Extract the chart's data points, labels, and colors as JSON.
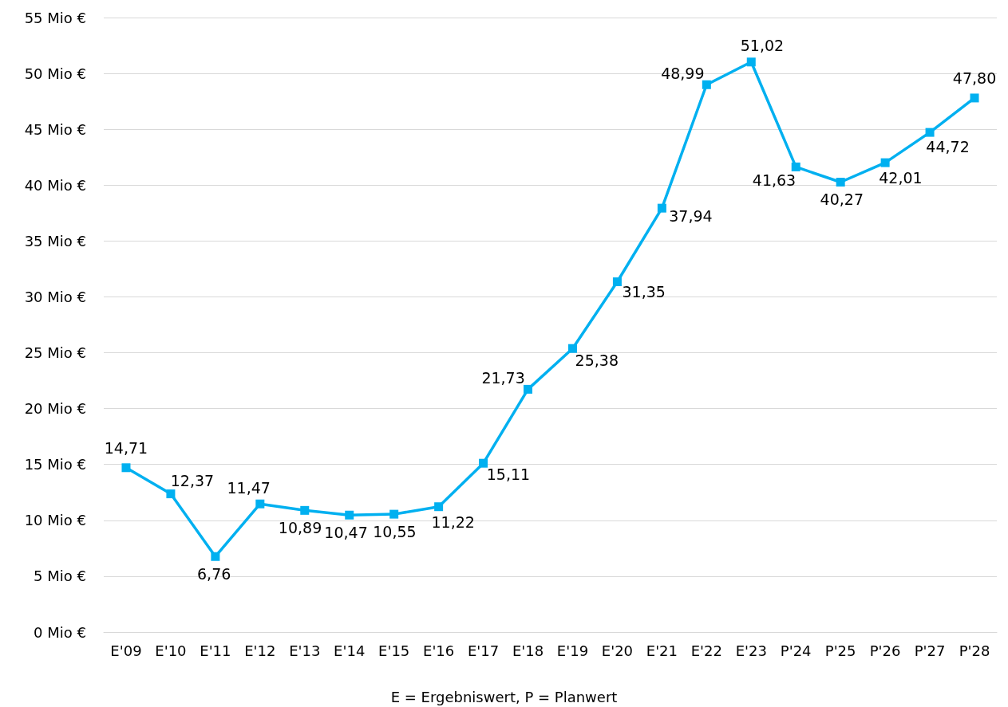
{
  "chart_data": {
    "type": "line",
    "categories": [
      "E'09",
      "E'10",
      "E'11",
      "E'12",
      "E'13",
      "E'14",
      "E'15",
      "E'16",
      "E'17",
      "E'18",
      "E'19",
      "E'20",
      "E'21",
      "E'22",
      "E'23",
      "P'24",
      "P'25",
      "P'26",
      "P'27",
      "P'28"
    ],
    "series": [
      {
        "color": "#00b0f0",
        "values": [
          14.71,
          12.37,
          6.76,
          11.47,
          10.89,
          10.47,
          10.55,
          11.22,
          15.11,
          21.73,
          25.38,
          31.35,
          37.94,
          48.99,
          51.02,
          41.63,
          40.27,
          42.01,
          44.72,
          47.8
        ],
        "value_labels": [
          "14,71",
          "12,37",
          "6,76",
          "11,47",
          "10,89",
          "10,47",
          "10,55",
          "11,22",
          "15,11",
          "21,73",
          "25,38",
          "31,35",
          "37,94",
          "48,99",
          "51,02",
          "41,63",
          "40,27",
          "42,01",
          "44,72",
          "47,80"
        ]
      }
    ],
    "ylim": [
      0,
      55
    ],
    "yticks": [
      {
        "value": 0,
        "label": "0 Mio €"
      },
      {
        "value": 5,
        "label": "5 Mio €"
      },
      {
        "value": 10,
        "label": "10 Mio €"
      },
      {
        "value": 15,
        "label": "15 Mio €"
      },
      {
        "value": 20,
        "label": "20 Mio €"
      },
      {
        "value": 25,
        "label": "25 Mio €"
      },
      {
        "value": 30,
        "label": "30 Mio €"
      },
      {
        "value": 35,
        "label": "35 Mio €"
      },
      {
        "value": 40,
        "label": "40 Mio €"
      },
      {
        "value": 45,
        "label": "45 Mio €"
      },
      {
        "value": 50,
        "label": "50 Mio €"
      },
      {
        "value": 55,
        "label": "55 Mio €"
      }
    ],
    "grid": "y",
    "marker": "square",
    "line_style": "solid",
    "annotations": [
      "E = Ergebniswert, P = Planwert"
    ]
  }
}
